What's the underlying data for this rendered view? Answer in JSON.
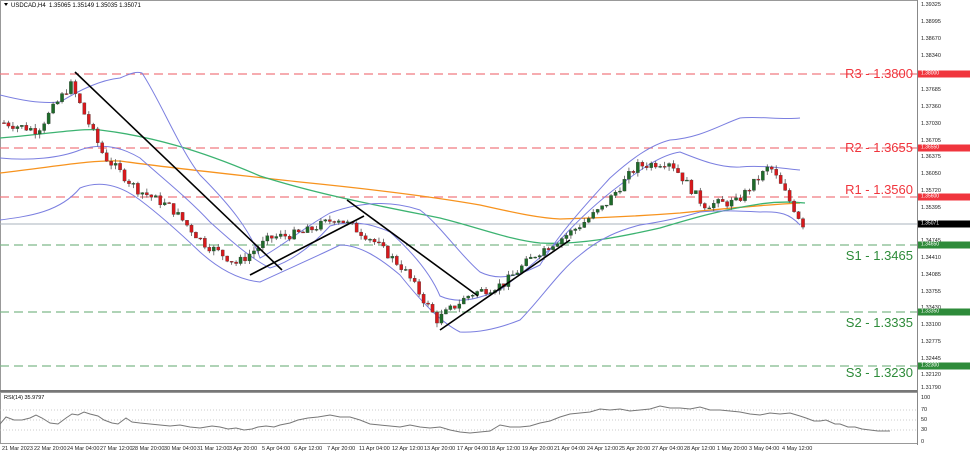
{
  "header": {
    "symbol_timeframe": "USDCAD,H4",
    "ohlc": "1.35065 1.35149 1.35035 1.35071"
  },
  "rsi": {
    "title": "RSI(14) 35.9797",
    "levels": [
      "100",
      "70",
      "50",
      "30",
      "0"
    ]
  },
  "levels": {
    "r3": "R3 - 1.3800",
    "r2": "R2 - 1.3655",
    "r1": "R1 - 1.3560",
    "s1": "S1 - 1.3465",
    "s2": "S2 - 1.3335",
    "s3": "S3 - 1.3230"
  },
  "price_axis": {
    "ticks": [
      "1.39325",
      "1.38995",
      "1.38670",
      "1.38340",
      "1.37685",
      "1.37360",
      "1.37030",
      "1.36705",
      "1.36375",
      "1.36050",
      "1.35720",
      "1.35395",
      "1.34745",
      "1.34410",
      "1.34085",
      "1.33755",
      "1.33430",
      "1.33100",
      "1.32775",
      "1.32445",
      "1.32120",
      "1.31790"
    ],
    "tags": {
      "r3": "1.38000",
      "r2": "1.36550",
      "r1": "1.35600",
      "current": "1.35071",
      "s1": "1.34650",
      "s2": "1.33350",
      "s3": "1.32300"
    }
  },
  "time_axis": [
    "21 Mar 2023",
    "22 Mar 20:00",
    "24 Mar 04:00",
    "27 Mar 12:00",
    "28 Mar 20:00",
    "30 Mar 04:00",
    "31 Mar 12:00",
    "3 Apr 20:00",
    "5 Apr 04:00",
    "6 Apr 12:00",
    "7 Apr 20:00",
    "11 Apr 04:00",
    "12 Apr 12:00",
    "13 Apr 20:00",
    "17 Apr 04:00",
    "18 Apr 12:00",
    "19 Apr 20:00",
    "21 Apr 04:00",
    "24 Apr 12:00",
    "25 Apr 20:00",
    "27 Apr 04:00",
    "28 Apr 12:00",
    "1 May 20:00",
    "3 May 04:00",
    "4 May 12:00"
  ],
  "colors": {
    "resistance": "#f0353d",
    "support": "#2e8b3a",
    "bull_candle": "#1e6b2a",
    "bear_candle": "#d7191c",
    "bollinger": "#7b7fe0",
    "ma_green": "#3cb371",
    "ma_orange": "#f7931e",
    "trendline": "#000000",
    "current_price": "#000000"
  },
  "chart_data": {
    "type": "candlestick",
    "title": "USDCAD,H4",
    "instrument": "USDCAD",
    "timeframe": "H4",
    "last_ohlc": {
      "open": 1.35065,
      "high": 1.35149,
      "low": 1.35035,
      "close": 1.35071
    },
    "ylim": [
      1.3163,
      1.3949
    ],
    "x_labels": [
      "21 Mar 2023",
      "22 Mar 20:00",
      "24 Mar 04:00",
      "27 Mar 12:00",
      "28 Mar 20:00",
      "30 Mar 04:00",
      "31 Mar 12:00",
      "3 Apr 20:00",
      "5 Apr 04:00",
      "6 Apr 12:00",
      "7 Apr 20:00",
      "11 Apr 04:00",
      "12 Apr 12:00",
      "13 Apr 20:00",
      "17 Apr 04:00",
      "18 Apr 12:00",
      "19 Apr 20:00",
      "21 Apr 04:00",
      "24 Apr 12:00",
      "25 Apr 20:00",
      "27 Apr 04:00",
      "28 Apr 12:00",
      "1 May 20:00",
      "3 May 04:00",
      "4 May 12:00"
    ],
    "horizontal_levels": [
      {
        "name": "R3",
        "value": 1.38,
        "style": "dashed",
        "color": "#f0353d"
      },
      {
        "name": "R2",
        "value": 1.3655,
        "style": "dashed",
        "color": "#f0353d"
      },
      {
        "name": "R1",
        "value": 1.356,
        "style": "dashed",
        "color": "#f0353d"
      },
      {
        "name": "S1",
        "value": 1.3465,
        "style": "dashed",
        "color": "#2e8b3a"
      },
      {
        "name": "S2",
        "value": 1.3335,
        "style": "dashed",
        "color": "#2e8b3a"
      },
      {
        "name": "S3",
        "value": 1.323,
        "style": "dashed",
        "color": "#2e8b3a"
      },
      {
        "name": "Current",
        "value": 1.35071,
        "style": "solid",
        "color": "#9aa3ad"
      }
    ],
    "approx_close_path": [
      {
        "x": "21 Mar 2023",
        "close": 1.3705
      },
      {
        "x": "22 Mar 20:00",
        "close": 1.369
      },
      {
        "x": "24 Mar 04:00",
        "close": 1.378
      },
      {
        "x": "27 Mar 12:00",
        "close": 1.364
      },
      {
        "x": "28 Mar 20:00",
        "close": 1.3575
      },
      {
        "x": "30 Mar 04:00",
        "close": 1.354
      },
      {
        "x": "31 Mar 12:00",
        "close": 1.347
      },
      {
        "x": "3 Apr 20:00",
        "close": 1.343
      },
      {
        "x": "5 Apr 04:00",
        "close": 1.348
      },
      {
        "x": "6 Apr 12:00",
        "close": 1.349
      },
      {
        "x": "7 Apr 20:00",
        "close": 1.352
      },
      {
        "x": "11 Apr 04:00",
        "close": 1.348
      },
      {
        "x": "12 Apr 12:00",
        "close": 1.342
      },
      {
        "x": "13 Apr 20:00",
        "close": 1.332
      },
      {
        "x": "17 Apr 04:00",
        "close": 1.337
      },
      {
        "x": "18 Apr 12:00",
        "close": 1.339
      },
      {
        "x": "19 Apr 20:00",
        "close": 1.345
      },
      {
        "x": "21 Apr 04:00",
        "close": 1.349
      },
      {
        "x": "24 Apr 12:00",
        "close": 1.354
      },
      {
        "x": "25 Apr 20:00",
        "close": 1.362
      },
      {
        "x": "27 Apr 04:00",
        "close": 1.363
      },
      {
        "x": "28 Apr 12:00",
        "close": 1.3545
      },
      {
        "x": "1 May 20:00",
        "close": 1.355
      },
      {
        "x": "3 May 04:00",
        "close": 1.362
      },
      {
        "x": "4 May 12:00",
        "close": 1.35071
      }
    ],
    "indicators": [
      {
        "name": "Bollinger Bands",
        "color": "#7b7fe0"
      },
      {
        "name": "Moving Average (green)",
        "color": "#3cb371"
      },
      {
        "name": "Moving Average (orange)",
        "color": "#f7931e"
      },
      {
        "name": "RSI(14)",
        "value": 35.9797,
        "levels": [
          30,
          50,
          70
        ],
        "range": [
          0,
          100
        ]
      }
    ],
    "trendlines": [
      {
        "from": {
          "x": "24 Mar 04:00",
          "price": 1.381
        },
        "to": {
          "x": "5 Apr 04:00",
          "price": 1.3435
        }
      },
      {
        "from": {
          "x": "3 Apr 20:00",
          "price": 1.342
        },
        "to": {
          "x": "11 Apr 04:00",
          "price": 1.352
        }
      },
      {
        "from": {
          "x": "7 Apr 20:00",
          "price": 1.3545
        },
        "to": {
          "x": "17 Apr 04:00",
          "price": 1.3385
        }
      },
      {
        "from": {
          "x": "13 Apr 20:00",
          "price": 1.3305
        },
        "to": {
          "x": "21 Apr 04:00",
          "price": 1.3475
        }
      }
    ]
  }
}
